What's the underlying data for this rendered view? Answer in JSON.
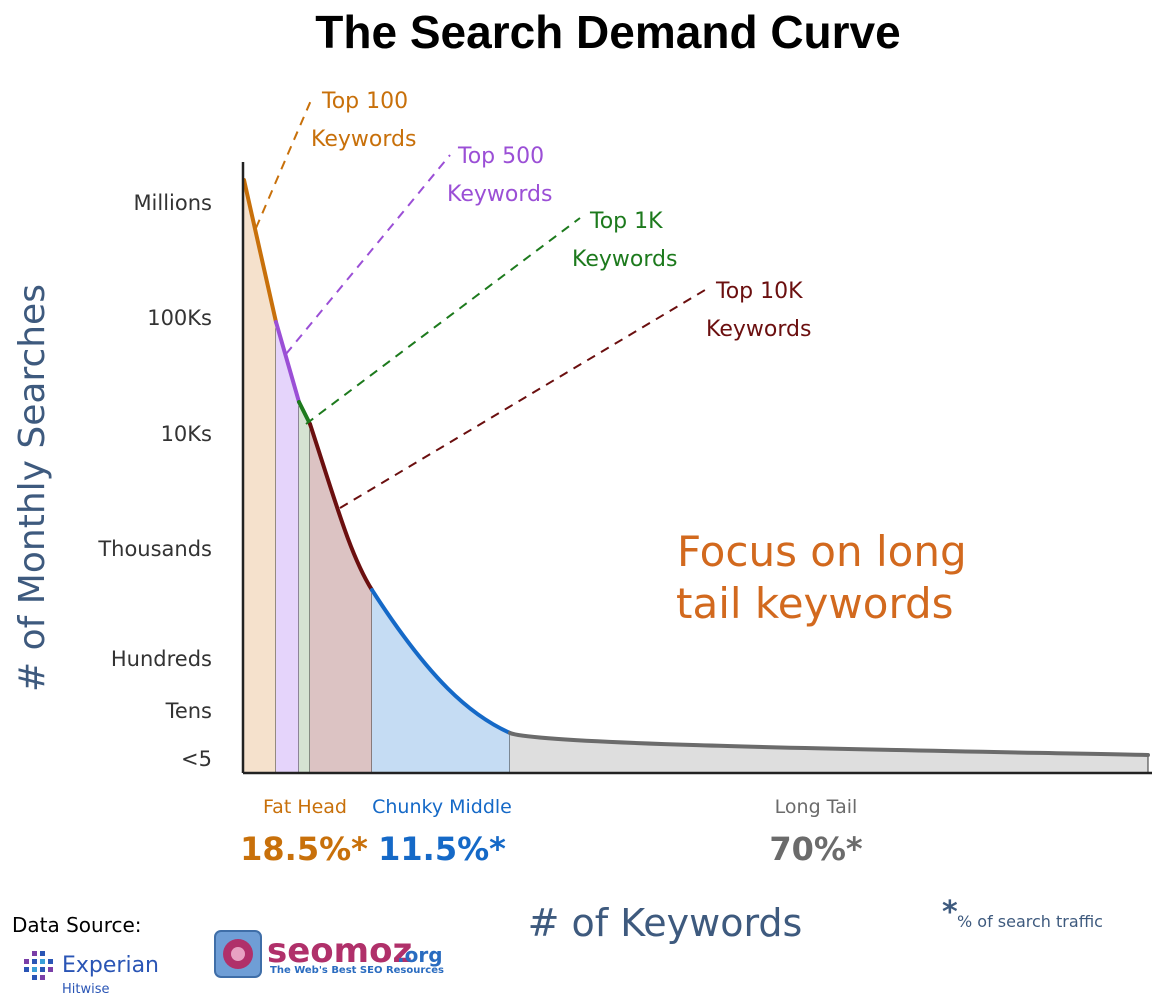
{
  "chart_data": {
    "type": "area",
    "title": "The Search Demand Curve",
    "ylabel": "# of Monthly Searches",
    "xlabel": "# of Keywords",
    "y_scale": "log",
    "y_ticks": [
      "Millions",
      "100Ks",
      "10Ks",
      "Thousands",
      "Hundreds",
      "Tens",
      "<5"
    ],
    "y_tick_values": [
      1000000,
      100000,
      10000,
      1000,
      100,
      10,
      5
    ],
    "callouts": [
      {
        "line1": "Top 100",
        "line2": "Keywords",
        "color": "#c8700a"
      },
      {
        "line1": "Top 500",
        "line2": "Keywords",
        "color": "#9b4fd6"
      },
      {
        "line1": "Top 1K",
        "line2": "Keywords",
        "color": "#1d7a1d"
      },
      {
        "line1": "Top 10K",
        "line2": "Keywords",
        "color": "#6b0f0f"
      }
    ],
    "segments": [
      {
        "name": "Top 100 Keywords",
        "from_rank": 0,
        "to_rank": 100,
        "start_searches": 2000000,
        "end_searches": 130000,
        "line_color": "#c8700a",
        "fill_color": "#f5e1cc"
      },
      {
        "name": "Top 500 Keywords",
        "from_rank": 100,
        "to_rank": 500,
        "start_searches": 130000,
        "end_searches": 25000,
        "line_color": "#9b4fd6",
        "fill_color": "#e5d4fb"
      },
      {
        "name": "Top 1K Keywords",
        "from_rank": 500,
        "to_rank": 1000,
        "start_searches": 25000,
        "end_searches": 14000,
        "line_color": "#1d7a1d",
        "fill_color": "#d5e3d2"
      },
      {
        "name": "Top 10K Keywords",
        "from_rank": 1000,
        "to_rank": 10000,
        "start_searches": 14000,
        "end_searches": 450,
        "line_color": "#6b0f0f",
        "fill_color": "#dcc3c3"
      },
      {
        "name": "Chunky Middle",
        "from_rank": 10000,
        "to_rank": 20000,
        "start_searches": 450,
        "end_searches": 7,
        "line_color": "#1569c7",
        "fill_color": "#c5dcf3"
      },
      {
        "name": "Long Tail",
        "from_rank": 20000,
        "to_rank": 160000,
        "start_searches": 7,
        "end_searches": 5,
        "line_color": "#6b6b6b",
        "fill_color": "#dedede"
      }
    ],
    "groups": [
      {
        "name": "Fat Head",
        "share": "18.5%*",
        "color": "#c8700a"
      },
      {
        "name": "Chunky Middle",
        "share": "11.5%*",
        "color": "#1569c7"
      },
      {
        "name": "Long Tail",
        "share": "70%*",
        "color": "#6b6b6b"
      }
    ],
    "annotation": {
      "line1": "Focus on long",
      "line2": "tail keywords",
      "color": "#d2691e"
    },
    "footnote": {
      "star": "*",
      "text": "% of search traffic"
    }
  },
  "source": {
    "label": "Data Source:",
    "experian": "Experian",
    "hitwise": "Hitwise",
    "seomoz": "seomoz",
    "seomoz_tld": ".org",
    "seomoz_tagline": "The Web's Best SEO Resources"
  }
}
